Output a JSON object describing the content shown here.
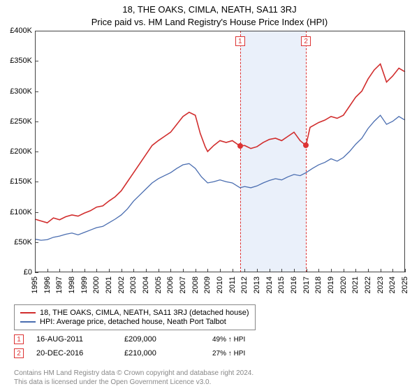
{
  "title": "18, THE OAKS, CIMLA, NEATH, SA11 3RJ",
  "subtitle": "Price paid vs. HM Land Registry's House Price Index (HPI)",
  "chart": {
    "type": "line",
    "background_color": "#ffffff",
    "band_color": "#eaf0fa",
    "border_color": "#444444",
    "xlim": [
      1995,
      2025
    ],
    "x_ticks": [
      1995,
      1996,
      1997,
      1998,
      1999,
      2000,
      2001,
      2002,
      2003,
      2004,
      2005,
      2006,
      2007,
      2008,
      2009,
      2010,
      2011,
      2012,
      2013,
      2014,
      2015,
      2016,
      2017,
      2018,
      2019,
      2020,
      2021,
      2022,
      2023,
      2024,
      2025
    ],
    "ylim": [
      0,
      400000
    ],
    "ytick_step": 50000,
    "y_tick_labels": [
      "£0",
      "£50K",
      "£100K",
      "£150K",
      "£200K",
      "£250K",
      "£300K",
      "£350K",
      "£400K"
    ],
    "y_tick_values": [
      0,
      50000,
      100000,
      150000,
      200000,
      250000,
      300000,
      350000,
      400000
    ],
    "axis_fontsize": 11,
    "title_fontsize": 13,
    "series": [
      {
        "name": "property",
        "label": "18, THE OAKS, CIMLA, NEATH, SA11 3RJ (detached house)",
        "color": "#d12d2d",
        "width": 1.6,
        "data": [
          [
            1995,
            88000
          ],
          [
            1995.5,
            85000
          ],
          [
            1996,
            82000
          ],
          [
            1996.5,
            90000
          ],
          [
            1997,
            87000
          ],
          [
            1997.5,
            92000
          ],
          [
            1998,
            95000
          ],
          [
            1998.5,
            93000
          ],
          [
            1999,
            98000
          ],
          [
            1999.5,
            102000
          ],
          [
            2000,
            108000
          ],
          [
            2000.5,
            110000
          ],
          [
            2001,
            118000
          ],
          [
            2001.5,
            125000
          ],
          [
            2002,
            135000
          ],
          [
            2002.5,
            150000
          ],
          [
            2003,
            165000
          ],
          [
            2003.5,
            180000
          ],
          [
            2004,
            195000
          ],
          [
            2004.5,
            210000
          ],
          [
            2005,
            218000
          ],
          [
            2005.5,
            225000
          ],
          [
            2006,
            232000
          ],
          [
            2006.5,
            245000
          ],
          [
            2007,
            258000
          ],
          [
            2007.5,
            265000
          ],
          [
            2008,
            260000
          ],
          [
            2008.4,
            230000
          ],
          [
            2008.8,
            208000
          ],
          [
            2009,
            200000
          ],
          [
            2009.5,
            210000
          ],
          [
            2010,
            218000
          ],
          [
            2010.5,
            215000
          ],
          [
            2011,
            218000
          ],
          [
            2011.63,
            209000
          ],
          [
            2012,
            210000
          ],
          [
            2012.5,
            205000
          ],
          [
            2013,
            208000
          ],
          [
            2013.5,
            215000
          ],
          [
            2014,
            220000
          ],
          [
            2014.5,
            222000
          ],
          [
            2015,
            218000
          ],
          [
            2015.5,
            225000
          ],
          [
            2016,
            232000
          ],
          [
            2016.5,
            218000
          ],
          [
            2016.97,
            210000
          ],
          [
            2017.3,
            240000
          ],
          [
            2018,
            248000
          ],
          [
            2018.5,
            252000
          ],
          [
            2019,
            258000
          ],
          [
            2019.5,
            255000
          ],
          [
            2020,
            260000
          ],
          [
            2020.5,
            275000
          ],
          [
            2021,
            290000
          ],
          [
            2021.5,
            300000
          ],
          [
            2022,
            320000
          ],
          [
            2022.5,
            335000
          ],
          [
            2023,
            345000
          ],
          [
            2023.5,
            315000
          ],
          [
            2024,
            325000
          ],
          [
            2024.5,
            338000
          ],
          [
            2025,
            332000
          ]
        ]
      },
      {
        "name": "hpi",
        "label": "HPI: Average price, detached house, Neath Port Talbot",
        "color": "#4a6db0",
        "width": 1.3,
        "data": [
          [
            1995,
            55000
          ],
          [
            1995.5,
            53000
          ],
          [
            1996,
            54000
          ],
          [
            1996.5,
            58000
          ],
          [
            1997,
            60000
          ],
          [
            1997.5,
            63000
          ],
          [
            1998,
            65000
          ],
          [
            1998.5,
            62000
          ],
          [
            1999,
            66000
          ],
          [
            1999.5,
            70000
          ],
          [
            2000,
            74000
          ],
          [
            2000.5,
            76000
          ],
          [
            2001,
            82000
          ],
          [
            2001.5,
            88000
          ],
          [
            2002,
            95000
          ],
          [
            2002.5,
            105000
          ],
          [
            2003,
            118000
          ],
          [
            2003.5,
            128000
          ],
          [
            2004,
            138000
          ],
          [
            2004.5,
            148000
          ],
          [
            2005,
            155000
          ],
          [
            2005.5,
            160000
          ],
          [
            2006,
            165000
          ],
          [
            2006.5,
            172000
          ],
          [
            2007,
            178000
          ],
          [
            2007.5,
            180000
          ],
          [
            2008,
            172000
          ],
          [
            2008.5,
            158000
          ],
          [
            2009,
            148000
          ],
          [
            2009.5,
            150000
          ],
          [
            2010,
            153000
          ],
          [
            2010.5,
            150000
          ],
          [
            2011,
            148000
          ],
          [
            2011.63,
            140000
          ],
          [
            2012,
            142000
          ],
          [
            2012.5,
            140000
          ],
          [
            2013,
            143000
          ],
          [
            2013.5,
            148000
          ],
          [
            2014,
            152000
          ],
          [
            2014.5,
            155000
          ],
          [
            2015,
            153000
          ],
          [
            2015.5,
            158000
          ],
          [
            2016,
            162000
          ],
          [
            2016.5,
            160000
          ],
          [
            2016.97,
            165000
          ],
          [
            2017.5,
            172000
          ],
          [
            2018,
            178000
          ],
          [
            2018.5,
            182000
          ],
          [
            2019,
            188000
          ],
          [
            2019.5,
            184000
          ],
          [
            2020,
            190000
          ],
          [
            2020.5,
            200000
          ],
          [
            2021,
            212000
          ],
          [
            2021.5,
            222000
          ],
          [
            2022,
            238000
          ],
          [
            2022.5,
            250000
          ],
          [
            2023,
            260000
          ],
          [
            2023.5,
            245000
          ],
          [
            2024,
            250000
          ],
          [
            2024.5,
            258000
          ],
          [
            2025,
            252000
          ]
        ]
      }
    ],
    "sale_band": {
      "from": 2011.63,
      "to": 2016.97
    },
    "sale_markers": [
      {
        "n": "1",
        "x": 2011.63,
        "y": 209000
      },
      {
        "n": "2",
        "x": 2016.97,
        "y": 210000
      }
    ]
  },
  "legend": {
    "series1": "18, THE OAKS, CIMLA, NEATH, SA11 3RJ (detached house)",
    "series2": "HPI: Average price, detached house, Neath Port Talbot"
  },
  "sales": [
    {
      "n": "1",
      "date": "16-AUG-2011",
      "price": "£209,000",
      "hpi": "49% ↑ HPI"
    },
    {
      "n": "2",
      "date": "20-DEC-2016",
      "price": "£210,000",
      "hpi": "27% ↑ HPI"
    }
  ],
  "footer": {
    "line1": "Contains HM Land Registry data © Crown copyright and database right 2024.",
    "line2": "This data is licensed under the Open Government Licence v3.0."
  }
}
